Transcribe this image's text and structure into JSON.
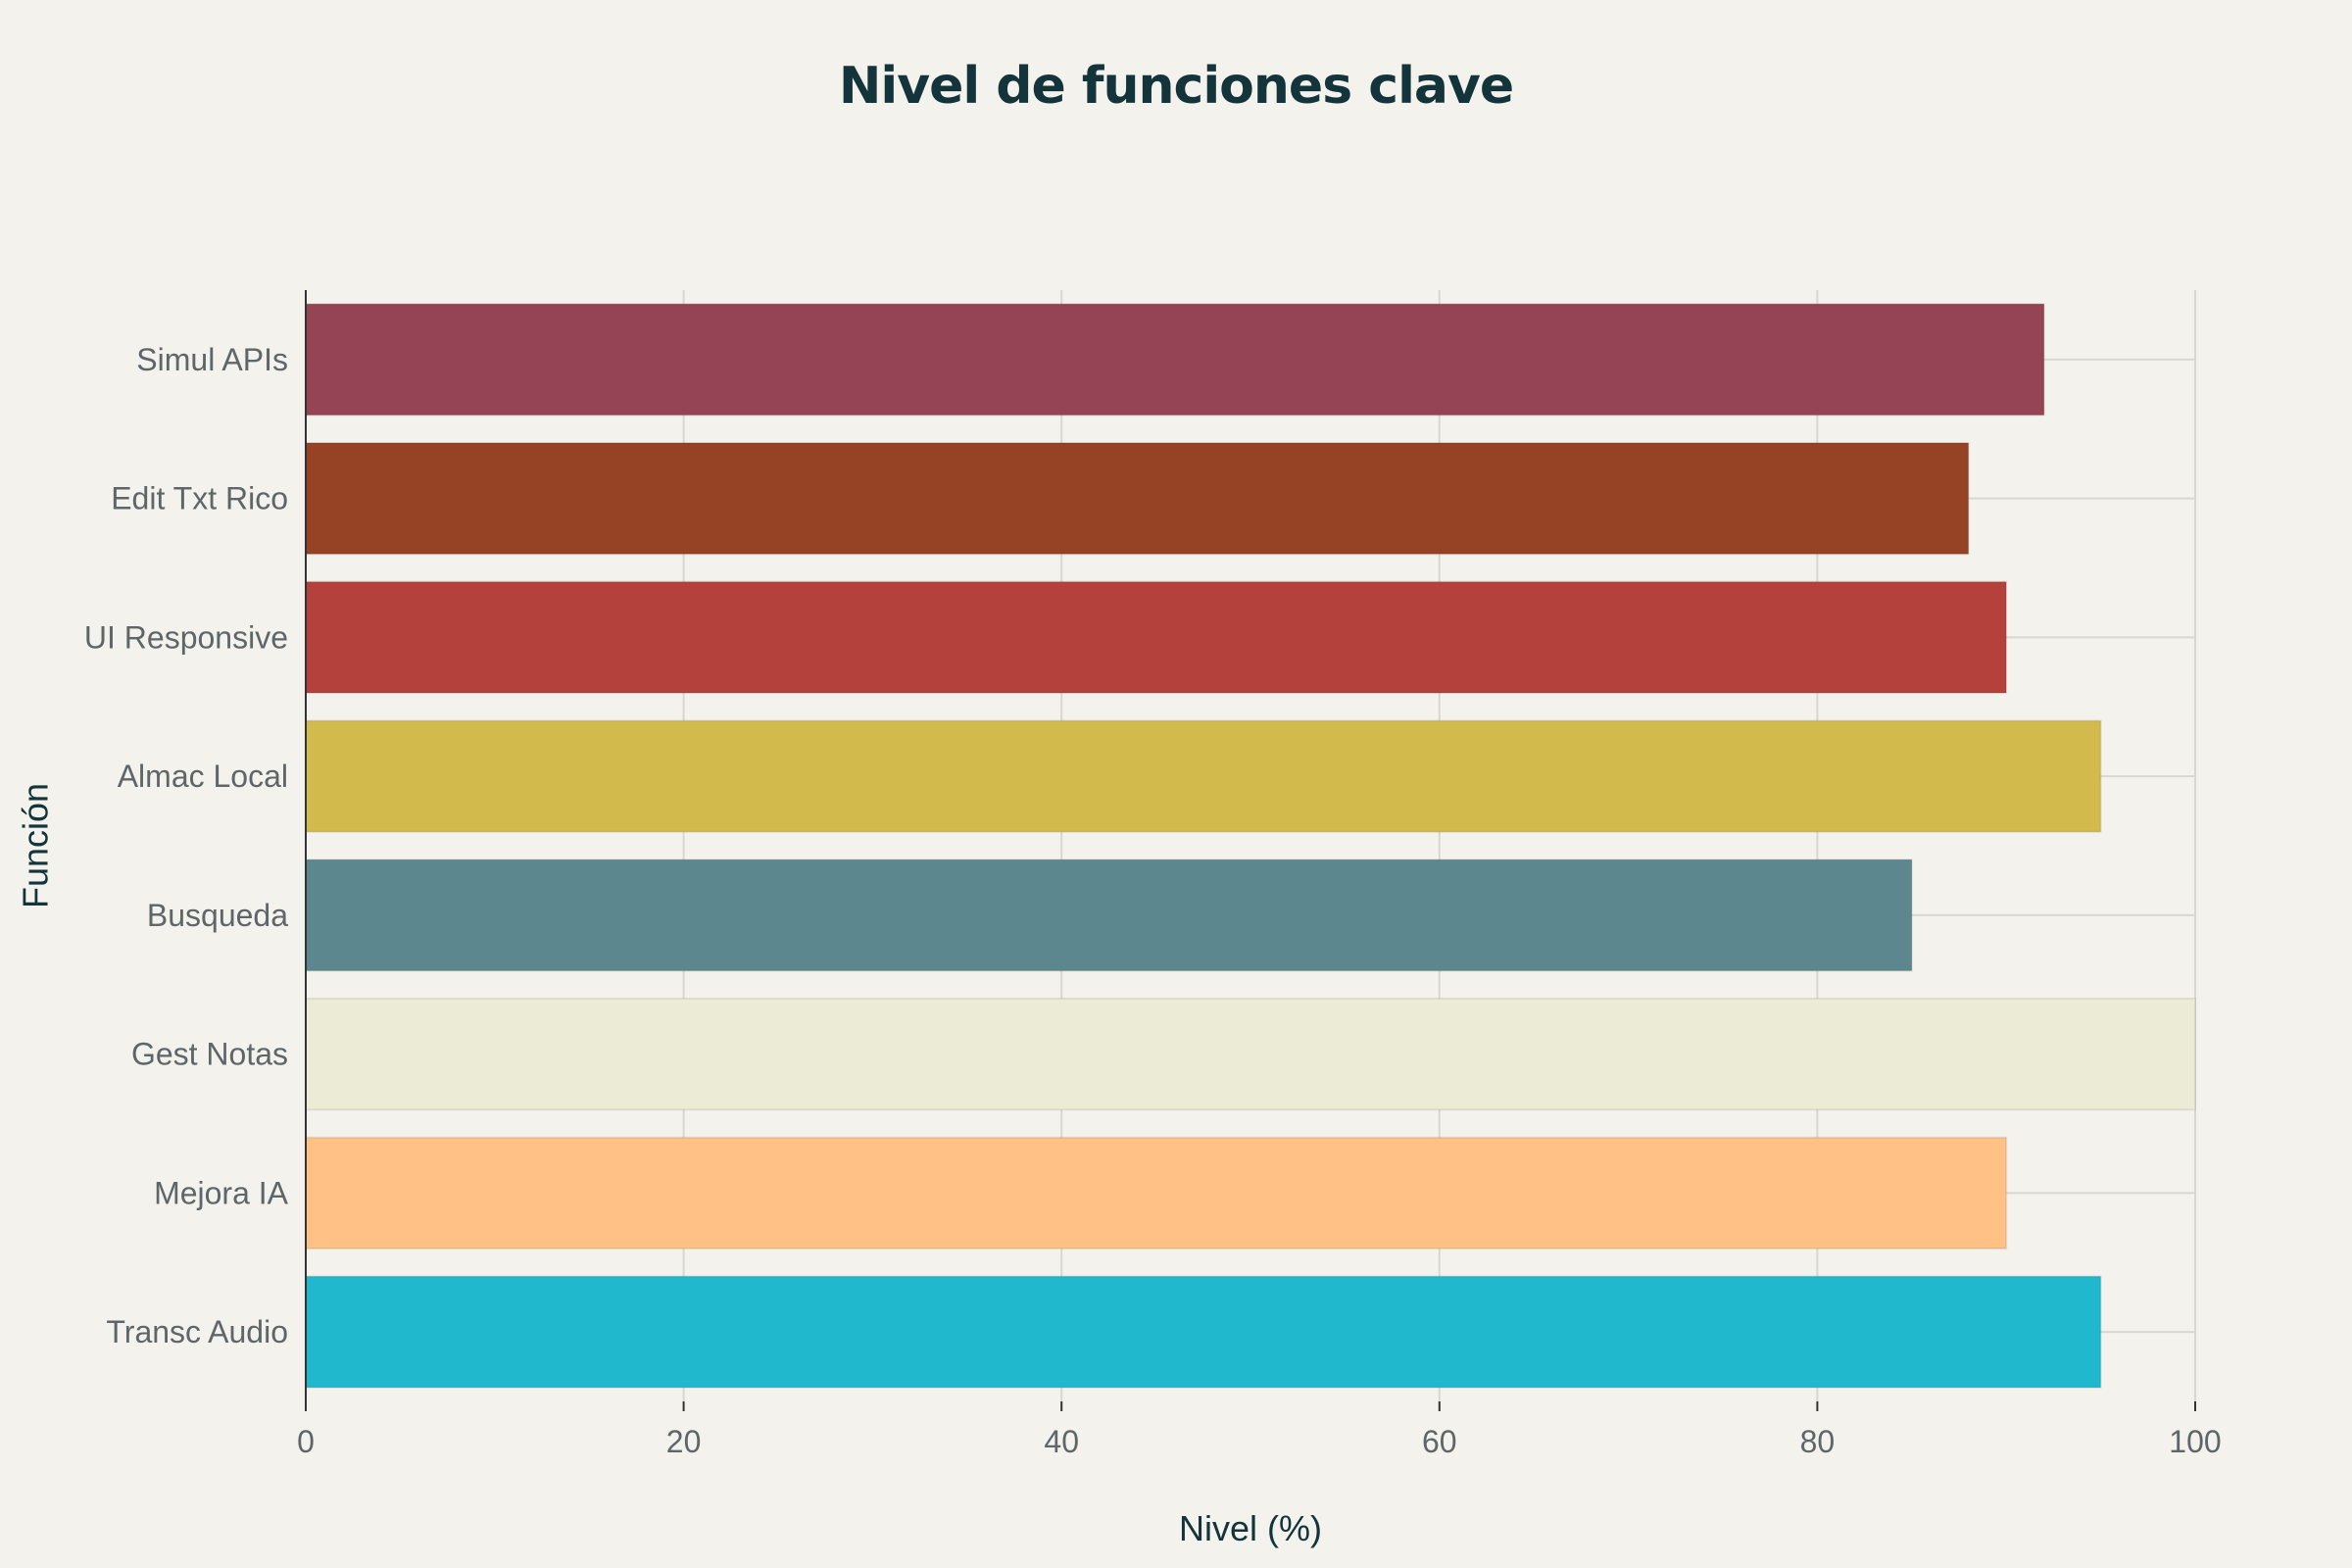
{
  "chart_data": {
    "type": "bar",
    "orientation": "horizontal",
    "title": "Nivel de funciones clave",
    "xlabel": "Nivel (%)",
    "ylabel": "Función",
    "xlim": [
      0,
      100
    ],
    "xticks": [
      "0",
      "20",
      "40",
      "60",
      "80",
      "100"
    ],
    "grid": true,
    "categories": [
      "Simul APIs",
      "Edit Txt Rico",
      "UI Responsive",
      "Almac Local",
      "Busqueda",
      "Gest Notas",
      "Mejora IA",
      "Transc Audio"
    ],
    "values": [
      92,
      88,
      90,
      95,
      85,
      100,
      90,
      95
    ],
    "colors": [
      "#944454",
      "#964325",
      "#B4413C",
      "#D2BA4C",
      "#5D878F",
      "#ECEBD5",
      "#FFC185",
      "#1FB8CD"
    ],
    "background": "#F3F2EC"
  }
}
